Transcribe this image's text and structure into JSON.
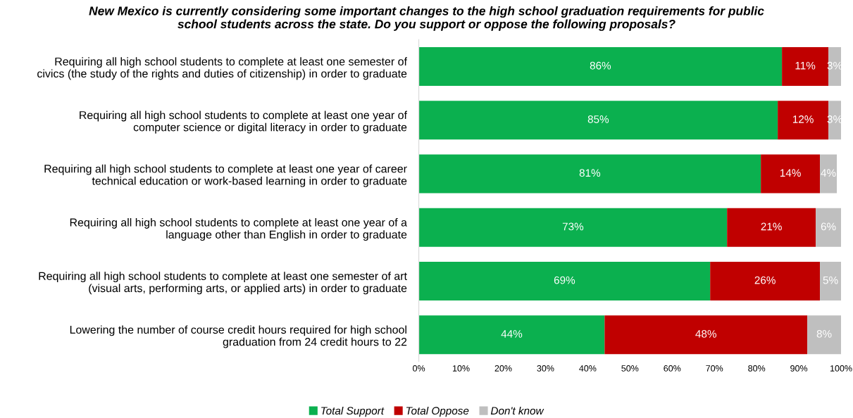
{
  "chart_data": {
    "type": "bar",
    "orientation": "horizontal",
    "stacked": true,
    "title": "New Mexico is currently considering some important changes to the high school graduation requirements for public\nschool students across the state. Do you support or oppose the following proposals?",
    "categories": [
      "Requiring all high school students to complete at least one semester of\ncivics (the study of the rights and duties of citizenship) in order to graduate",
      "Requiring all high school students to complete at least one year of\ncomputer science or digital literacy in order to graduate",
      "Requiring all high school students to complete at least one year of career\ntechnical education or work-based learning in order to graduate",
      "Requiring all high school students to complete at least one year of a\nlanguage other than English in order to graduate",
      "Requiring all high school students to complete at least one semester of art\n(visual arts, performing arts, or applied arts) in order to graduate",
      "Lowering the number of course credit hours required for high school\ngraduation from 24 credit hours to 22"
    ],
    "series": [
      {
        "name": "Total Support",
        "color": "#0bb04f",
        "values": [
          86,
          85,
          81,
          73,
          69,
          44
        ],
        "value_labels": [
          "86%",
          "85%",
          "81%",
          "73%",
          "69%",
          "44%"
        ]
      },
      {
        "name": "Total Oppose",
        "color": "#c00000",
        "values": [
          11,
          12,
          14,
          21,
          26,
          48
        ],
        "value_labels": [
          "11%",
          "12%",
          "14%",
          "21%",
          "26%",
          "48%"
        ]
      },
      {
        "name": "Don't know",
        "color": "#bfbfbf",
        "values": [
          3,
          3,
          4,
          6,
          5,
          8
        ],
        "value_labels": [
          "3%",
          "3%",
          "4%",
          "6%",
          "5%",
          "8%"
        ]
      }
    ],
    "xlim": [
      0,
      100
    ],
    "xticks": [
      {
        "value": 0,
        "label": "0%"
      },
      {
        "value": 10,
        "label": "10%"
      },
      {
        "value": 20,
        "label": "20%"
      },
      {
        "value": 30,
        "label": "30%"
      },
      {
        "value": 40,
        "label": "40%"
      },
      {
        "value": 50,
        "label": "50%"
      },
      {
        "value": 60,
        "label": "60%"
      },
      {
        "value": 70,
        "label": "70%"
      },
      {
        "value": 80,
        "label": "80%"
      },
      {
        "value": 90,
        "label": "90%"
      },
      {
        "value": 100,
        "label": "100%"
      }
    ],
    "legend": "bottom",
    "grid": false
  }
}
